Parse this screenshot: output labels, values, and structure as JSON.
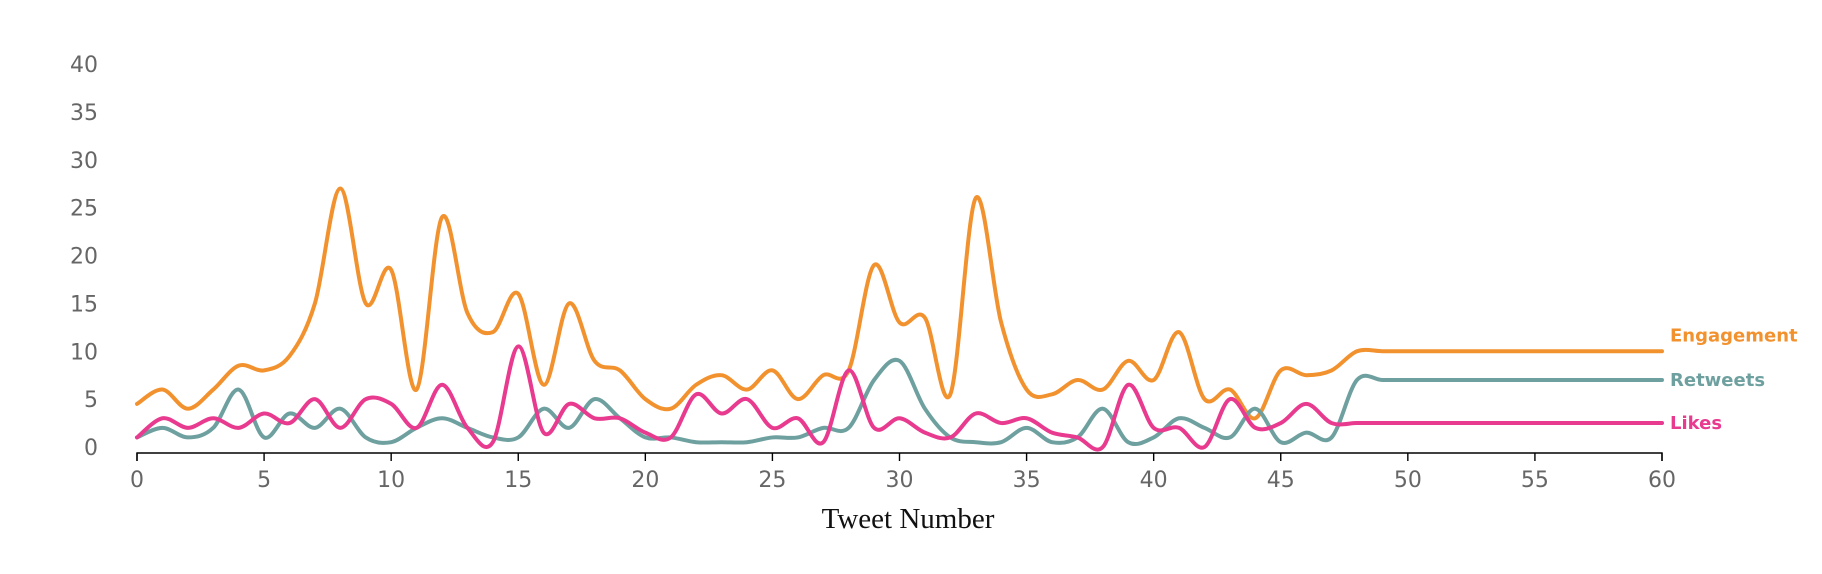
{
  "chart_data": {
    "type": "line",
    "xlabel": "Tweet Number",
    "ylabel": "",
    "title": "",
    "xlim": [
      0,
      60
    ],
    "ylim": [
      0,
      40
    ],
    "xticks": [
      0,
      5,
      10,
      15,
      20,
      25,
      30,
      35,
      40,
      45,
      50,
      55,
      60
    ],
    "yticks": [
      0,
      5,
      10,
      15,
      20,
      25,
      30,
      35,
      40
    ],
    "grid": false,
    "legend": "line-end labels at right",
    "x": [
      0,
      1,
      2,
      3,
      4,
      5,
      6,
      7,
      8,
      9,
      10,
      11,
      12,
      13,
      14,
      15,
      16,
      17,
      18,
      19,
      20,
      21,
      22,
      23,
      24,
      25,
      26,
      27,
      28,
      29,
      30,
      31,
      32,
      33,
      34,
      35,
      36,
      37,
      38,
      39,
      40,
      41,
      42,
      43,
      44,
      45,
      46,
      47,
      48,
      49,
      50,
      51,
      52,
      53,
      54,
      55,
      56,
      57,
      58,
      59,
      60
    ],
    "series": [
      {
        "name": "Engagement",
        "color": "#f2922f",
        "values": [
          4.5,
          6,
          4,
          6,
          8.5,
          8,
          9.5,
          15,
          27,
          15,
          18.5,
          6,
          24,
          14,
          12,
          16,
          6.5,
          15,
          9,
          8,
          5,
          4,
          6.5,
          7.5,
          6,
          8,
          5,
          7.5,
          8,
          19,
          13,
          13.5,
          5.5,
          26,
          13,
          6,
          5.5,
          7,
          6,
          9,
          7,
          12,
          5,
          6,
          3,
          8,
          7.5,
          8,
          10,
          10,
          10,
          10,
          10,
          10,
          10,
          10,
          10,
          10,
          10,
          10,
          10
        ]
      },
      {
        "name": "Retweets",
        "color": "#6fa0a0",
        "values": [
          1,
          2,
          1,
          2,
          6,
          1,
          3.5,
          2,
          4,
          1,
          0.5,
          2,
          3,
          2,
          1,
          1,
          4,
          2,
          5,
          3,
          1,
          1,
          0.5,
          0.5,
          0.5,
          1,
          1,
          2,
          2,
          7,
          9,
          4,
          1,
          0.5,
          0.5,
          2,
          0.5,
          1,
          4,
          0.5,
          1,
          3,
          2,
          1,
          4,
          0.5,
          1.5,
          1,
          7,
          7,
          7,
          7,
          7,
          7,
          7,
          7,
          7,
          7,
          7,
          7,
          7
        ]
      },
      {
        "name": "Likes",
        "color": "#e83a8f",
        "values": [
          1,
          3,
          2,
          3,
          2,
          3.5,
          2.5,
          5,
          2,
          5,
          4.5,
          2,
          6.5,
          2,
          0.5,
          10.5,
          1.5,
          4.5,
          3,
          3,
          1.5,
          1,
          5.5,
          3.5,
          5,
          2,
          3,
          0.5,
          8,
          2,
          3,
          1.5,
          1,
          3.5,
          2.5,
          3,
          1.5,
          1,
          0,
          6.5,
          2,
          2,
          0,
          5,
          2,
          2.5,
          4.5,
          2.5,
          2.5,
          2.5,
          2.5,
          2.5,
          2.5,
          2.5,
          2.5,
          2.5,
          2.5,
          2.5,
          2.5,
          2.5,
          2.5
        ]
      }
    ]
  }
}
